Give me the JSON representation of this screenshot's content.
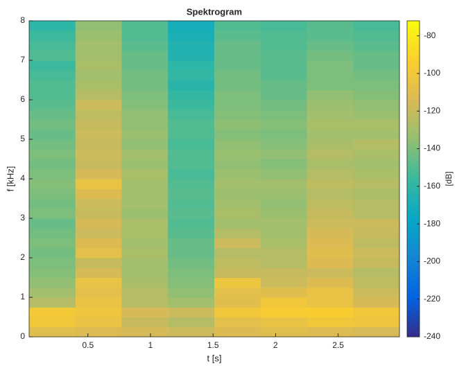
{
  "chart_data": {
    "type": "heatmap",
    "title": "Spektrogram",
    "xlabel": "t [s]",
    "ylabel": "f [kHz]",
    "colorbar_label": "[dB]",
    "x": [
      0.215,
      0.585,
      0.955,
      1.325,
      1.695,
      2.065,
      2.435,
      2.805
    ],
    "y": [
      0.125,
      0.375,
      0.625,
      0.875,
      1.125,
      1.375,
      1.625,
      1.875,
      2.125,
      2.375,
      2.625,
      2.875,
      3.125,
      3.375,
      3.625,
      3.875,
      4.125,
      4.375,
      4.625,
      4.875,
      5.125,
      5.375,
      5.625,
      5.875,
      6.125,
      6.375,
      6.625,
      6.875,
      7.125,
      7.375,
      7.625,
      7.875
    ],
    "values": [
      [
        -110,
        -112,
        -115,
        -118,
        -112,
        -110,
        -112,
        -115
      ],
      [
        -100,
        -105,
        -120,
        -125,
        -108,
        -105,
        -100,
        -102
      ],
      [
        -98,
        -102,
        -115,
        -118,
        -100,
        -96,
        -95,
        -100
      ],
      [
        -125,
        -105,
        -125,
        -130,
        -110,
        -100,
        -105,
        -115
      ],
      [
        -130,
        -108,
        -125,
        -135,
        -108,
        -110,
        -105,
        -118
      ],
      [
        -135,
        -105,
        -128,
        -138,
        -102,
        -118,
        -112,
        -122
      ],
      [
        -138,
        -115,
        -130,
        -140,
        -120,
        -120,
        -118,
        -125
      ],
      [
        -140,
        -120,
        -130,
        -142,
        -122,
        -125,
        -112,
        -120
      ],
      [
        -142,
        -108,
        -128,
        -145,
        -125,
        -125,
        -110,
        -118
      ],
      [
        -140,
        -112,
        -130,
        -145,
        -118,
        -128,
        -112,
        -122
      ],
      [
        -142,
        -118,
        -128,
        -148,
        -125,
        -130,
        -115,
        -120
      ],
      [
        -145,
        -115,
        -128,
        -150,
        -130,
        -130,
        -118,
        -118
      ],
      [
        -140,
        -120,
        -132,
        -148,
        -128,
        -132,
        -120,
        -125
      ],
      [
        -142,
        -118,
        -130,
        -150,
        -130,
        -135,
        -122,
        -125
      ],
      [
        -140,
        -112,
        -130,
        -148,
        -132,
        -132,
        -125,
        -128
      ],
      [
        -138,
        -105,
        -130,
        -150,
        -130,
        -130,
        -122,
        -125
      ],
      [
        -140,
        -115,
        -128,
        -152,
        -132,
        -135,
        -125,
        -128
      ],
      [
        -142,
        -120,
        -132,
        -150,
        -135,
        -138,
        -128,
        -130
      ],
      [
        -140,
        -118,
        -130,
        -150,
        -133,
        -135,
        -125,
        -128
      ],
      [
        -142,
        -120,
        -135,
        -152,
        -135,
        -138,
        -128,
        -125
      ],
      [
        -145,
        -118,
        -132,
        -150,
        -138,
        -140,
        -130,
        -130
      ],
      [
        -142,
        -120,
        -135,
        -150,
        -136,
        -138,
        -128,
        -128
      ],
      [
        -145,
        -122,
        -135,
        -152,
        -138,
        -140,
        -130,
        -132
      ],
      [
        -148,
        -118,
        -138,
        -155,
        -140,
        -142,
        -132,
        -135
      ],
      [
        -150,
        -125,
        -140,
        -158,
        -140,
        -145,
        -135,
        -138
      ],
      [
        -150,
        -128,
        -142,
        -162,
        -142,
        -145,
        -140,
        -140
      ],
      [
        -152,
        -130,
        -142,
        -158,
        -142,
        -148,
        -140,
        -142
      ],
      [
        -155,
        -128,
        -145,
        -160,
        -145,
        -148,
        -140,
        -145
      ],
      [
        -150,
        -130,
        -145,
        -165,
        -145,
        -148,
        -142,
        -145
      ],
      [
        -152,
        -130,
        -148,
        -165,
        -145,
        -150,
        -145,
        -148
      ],
      [
        -155,
        -132,
        -150,
        -168,
        -148,
        -150,
        -148,
        -150
      ],
      [
        -160,
        -135,
        -150,
        -170,
        -150,
        -152,
        -148,
        -152
      ]
    ],
    "xlim": [
      0.03,
      2.99
    ],
    "ylim": [
      0,
      8
    ],
    "xticks": [
      0.5,
      1,
      1.5,
      2,
      2.5
    ],
    "yticks": [
      0,
      1,
      2,
      3,
      4,
      5,
      6,
      7,
      8
    ],
    "clim": [
      -240,
      -72
    ],
    "cticks": [
      -240,
      -220,
      -200,
      -180,
      -160,
      -140,
      -120,
      -100,
      -80
    ],
    "colormap": [
      "#352a87",
      "#0363e1",
      "#1485d4",
      "#06a7c6",
      "#38b99e",
      "#92bf73",
      "#d9ba56",
      "#fcce2e",
      "#f9fb0e"
    ]
  }
}
